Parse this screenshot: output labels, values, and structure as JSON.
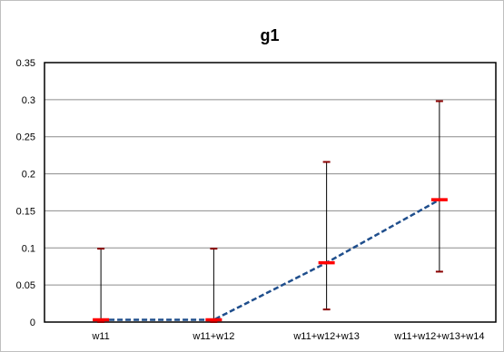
{
  "chart_data": {
    "type": "line",
    "title": "g1",
    "xlabel": "",
    "ylabel": "",
    "categories": [
      "w11",
      "w11+w12",
      "w11+w12+w13",
      "w11+w12+w13+w14"
    ],
    "ylim": [
      0,
      0.35
    ],
    "yticks": [
      "0",
      "0.05",
      "0.1",
      "0.15",
      "0.2",
      "0.25",
      "0.3",
      "0.35"
    ],
    "grid": true,
    "legend": "none",
    "series": [
      {
        "values": [
          0.003,
          0.003,
          0.08,
          0.165
        ],
        "error_low": [
          0.0,
          0.0,
          0.017,
          0.068
        ],
        "error_high": [
          0.099,
          0.099,
          0.216,
          0.298
        ],
        "line_style": "dashed"
      }
    ],
    "colors": {
      "line": "#1f4e8c",
      "marker": "#ff0000",
      "error_bar": "#000000",
      "error_cap": "#8b0000",
      "grid": "#8c8c8c",
      "axis": "#000000"
    }
  }
}
